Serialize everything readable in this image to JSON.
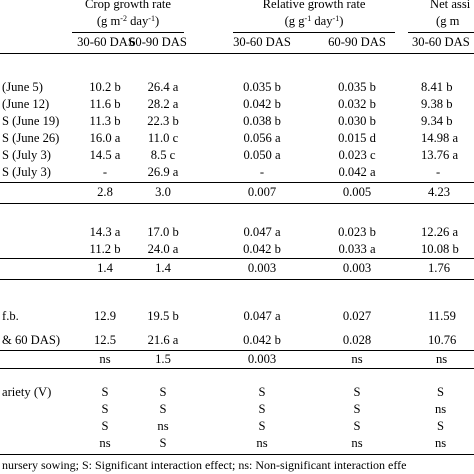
{
  "headers": {
    "crop_growth_rate": "Crop growth rate",
    "crop_growth_rate_unit": {
      "pre": "(g m",
      "sup1": "-2",
      "mid": " day",
      "sup2": "-1",
      "post": ")"
    },
    "relative_growth_rate": "Relative growth rate",
    "relative_growth_rate_unit": {
      "pre": "(g g",
      "sup1": "-1",
      "mid": " day",
      "sup2": "-1",
      "post": ")"
    },
    "net_assim": "Net assi",
    "net_assim_unit": "(g m",
    "sub_cols": [
      "30-60 DAS",
      "60-90 DAS",
      "30-60 DAS",
      "60-90 DAS",
      "30-60 DAS"
    ]
  },
  "group1": {
    "rows": [
      {
        "label": "(June 5)",
        "cells": [
          "10.2 b",
          "26.4 a",
          "0.035 b",
          "0.035 b",
          "8.41 b"
        ]
      },
      {
        "label": "(June 12)",
        "cells": [
          "11.6 b",
          "28.2 a",
          "0.042 b",
          "0.032 b",
          "9.38 b"
        ]
      },
      {
        "label": "S (June 19)",
        "cells": [
          "11.3 b",
          "22.3 b",
          "0.038 b",
          "0.030 b",
          "9.34 b"
        ]
      },
      {
        "label": "S (June 26)",
        "cells": [
          "16.0 a",
          "11.0 c",
          "0.056 a",
          "0.015 d",
          "14.98 a"
        ]
      },
      {
        "label": "S (July 3)",
        "cells": [
          "14.5 a",
          "8.5 c",
          "0.050 a",
          "0.023 c",
          "13.76 a"
        ]
      },
      {
        "label": "S (July 3)",
        "cells": [
          "-",
          "26.9 a",
          "-",
          "0.042 a",
          "-"
        ]
      }
    ],
    "lsd": [
      "2.8",
      "3.0",
      "0.007",
      "0.005",
      "4.23"
    ]
  },
  "group2": {
    "rows": [
      {
        "label": "",
        "cells": [
          "14.3 a",
          "17.0 b",
          "0.047 a",
          "0.023 b",
          "12.26 a"
        ]
      },
      {
        "label": "",
        "cells": [
          "11.2 b",
          "24.0 a",
          "0.042 b",
          "0.033 a",
          "10.08 b"
        ]
      }
    ],
    "lsd": [
      "1.4",
      "1.4",
      "0.003",
      "0.003",
      "1.76"
    ]
  },
  "group3": {
    "rows": [
      {
        "label": "f.b.",
        "cells": [
          "12.9",
          "19.5 b",
          "0.047 a",
          "0.027",
          "11.59"
        ]
      },
      {
        "label": "& 60 DAS)",
        "cells": [
          "12.5",
          "21.6 a",
          "0.042 b",
          "0.028",
          "10.76"
        ]
      }
    ],
    "lsd": [
      "ns",
      "1.5",
      "0.003",
      "ns",
      "ns"
    ]
  },
  "interaction": {
    "label": "ariety (V)",
    "rows": [
      [
        "S",
        "S",
        "S",
        "S",
        "S"
      ],
      [
        "S",
        "S",
        "S",
        "S",
        "ns"
      ],
      [
        "S",
        "ns",
        "S",
        "S",
        "S"
      ],
      [
        "ns",
        "S",
        "ns",
        "ns",
        "ns"
      ]
    ]
  },
  "footnote": "nursery sowing; S: Significant interaction effect; ns: Non-significant interaction effe"
}
